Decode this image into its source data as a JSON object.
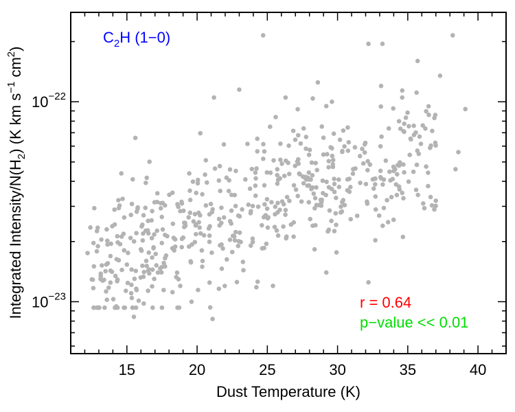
{
  "chart_data": {
    "type": "scatter",
    "title": "C₂H (1–0)",
    "title_parts": {
      "base": "C",
      "sub": "2",
      "rest": "H (1−0)"
    },
    "xlabel": "Dust Temperature (K)",
    "ylabel_parts": {
      "a": "Integrated Intensity/N(H",
      "sub": "2",
      "b": ") (K km s",
      "sup1": "−1",
      "c": " cm",
      "sup2": "2",
      "d": ")"
    },
    "xlim": [
      11,
      42
    ],
    "ylim": [
      5.5e-24,
      2.8e-22
    ],
    "yscale": "log",
    "x_ticks": [
      15,
      20,
      25,
      30,
      35,
      40
    ],
    "x_tick_labels": [
      "15",
      "20",
      "25",
      "30",
      "35",
      "40"
    ],
    "y_ticks": [
      1e-23,
      1e-22
    ],
    "y_tick_labels": [
      {
        "base": "10",
        "exp": "−23"
      },
      {
        "base": "10",
        "exp": "−22"
      }
    ],
    "annotations": [
      {
        "text": "r = 0.64",
        "color": "#ff0000"
      },
      {
        "text": "p−value << 0.01",
        "color": "#00dd00"
      }
    ],
    "title_color": "#0000ff",
    "point_color": "#b3b3b3",
    "points_seed": 7,
    "n_background_points": 560,
    "points": [
      [
        24.7,
        2.15e-22
      ],
      [
        38.2,
        2.15e-22
      ],
      [
        32.2,
        1.95e-22
      ],
      [
        33.2,
        1.95e-22
      ],
      [
        35.7,
        1.6e-22
      ],
      [
        37.3,
        1.35e-22
      ],
      [
        39.1,
        9.2e-23
      ],
      [
        38.6,
        5.6e-23
      ],
      [
        38.4,
        4.6e-23
      ],
      [
        12.4,
        2.35e-23
      ],
      [
        12.2,
        1.75e-23
      ],
      [
        15.5,
        8.4e-24
      ],
      [
        16.2,
        9.8e-24
      ],
      [
        19.6,
        1e-23
      ],
      [
        21.1,
        8.2e-24
      ],
      [
        25.4,
        1.2e-23
      ],
      [
        29.2,
        1.4e-23
      ],
      [
        32.2,
        1.25e-23
      ],
      [
        15.6,
        6.6e-23
      ],
      [
        21.2,
        1.05e-22
      ],
      [
        23.0,
        1.15e-22
      ],
      [
        26.3,
        1.05e-22
      ],
      [
        28.6,
        1.25e-22
      ],
      [
        34.6,
        1.05e-22
      ],
      [
        33.1,
        1.2e-22
      ],
      [
        29.6,
        1e-22
      ],
      [
        34.1,
        4.6e-23
      ],
      [
        33.6,
        2.5e-23
      ],
      [
        36.5,
        8.6e-23
      ],
      [
        36.1,
        3.1e-23
      ],
      [
        37.0,
        3.2e-23
      ]
    ]
  }
}
